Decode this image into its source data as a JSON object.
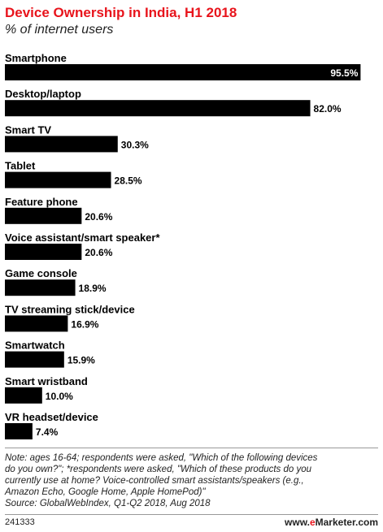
{
  "header": {
    "title": "Device Ownership in India, H1 2018",
    "subtitle": "% of internet users"
  },
  "chart_data": {
    "type": "bar",
    "orientation": "horizontal",
    "title": "Device Ownership in India, H1 2018",
    "subtitle": "% of internet users",
    "categories": [
      "Smartphone",
      "Desktop/laptop",
      "Smart TV",
      "Tablet",
      "Feature phone",
      "Voice assistant/smart speaker*",
      "Game console",
      "TV streaming stick/device",
      "Smartwatch",
      "Smart wristband",
      "VR headset/device"
    ],
    "values": [
      95.5,
      82.0,
      30.3,
      28.5,
      20.6,
      20.6,
      18.9,
      16.9,
      15.9,
      10.0,
      7.4
    ],
    "value_labels": [
      "95.5%",
      "82.0%",
      "30.3%",
      "28.5%",
      "20.6%",
      "20.6%",
      "18.9%",
      "16.9%",
      "15.9%",
      "10.0%",
      "7.4%"
    ],
    "xlim": [
      0,
      100
    ],
    "grid": false,
    "bar_color": "#000000"
  },
  "notes": {
    "line1": "Note: ages 16-64; respondents were asked, \"Which of the following devices",
    "line2": "do you own?\"; *respondents were asked, \"Which of these products do you",
    "line3": "currently use at home? Voice-controlled smart assistants/speakers (e.g.,",
    "line4": "Amazon Echo, Google Home, Apple HomePod)\"",
    "source": "Source: GlobalWebIndex, Q1-Q2 2018, Aug 2018"
  },
  "footer": {
    "code": "241333",
    "brand_prefix": "www.",
    "brand_accent": "e",
    "brand_suffix": "Marketer.com"
  },
  "colors": {
    "title": "#e8141c",
    "bar": "#000000",
    "label_inside": "#ffffff",
    "label_outside": "#000000"
  }
}
